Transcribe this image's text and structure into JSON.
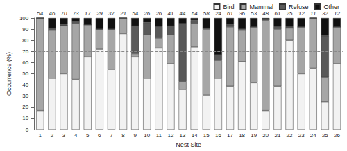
{
  "chart_data": {
    "type": "bar",
    "stacked": true,
    "x_label": "Nest Site",
    "y_label": "Occurrence (%)",
    "categories": [
      "1",
      "2",
      "3",
      "4",
      "5",
      "6",
      "7",
      "8",
      "9",
      "10",
      "11",
      "12",
      "13",
      "14",
      "15",
      "16",
      "17",
      "18",
      "19",
      "20",
      "21",
      "22",
      "23",
      "24",
      "25",
      "26"
    ],
    "sample_sizes": [
      54,
      46,
      70,
      73,
      17,
      29,
      37,
      21,
      54,
      26,
      26,
      41,
      44,
      64,
      58,
      24,
      61,
      36,
      53,
      48,
      61,
      25,
      12,
      11,
      32,
      12
    ],
    "series": [
      {
        "name": "Bird",
        "color": "#f2f2f2",
        "values": [
          17,
          46,
          50,
          45,
          65,
          72,
          54,
          86,
          65,
          46,
          73,
          59,
          36,
          74,
          31,
          46,
          39,
          61,
          42,
          17,
          39,
          80,
          50,
          55,
          25,
          59
        ]
      },
      {
        "name": "Mammal",
        "color": "#a6a6a6",
        "values": [
          83,
          43,
          43,
          50,
          29,
          18,
          36,
          14,
          3,
          39,
          9,
          26,
          7,
          21,
          59,
          16,
          53,
          28,
          50,
          81,
          51,
          11,
          42,
          45,
          22,
          33
        ]
      },
      {
        "name": "Refuse",
        "color": "#595959",
        "values": [
          0,
          2,
          1,
          2,
          0,
          0,
          0,
          0,
          25,
          11,
          10,
          8,
          52,
          3,
          1,
          5,
          2,
          1,
          0,
          1,
          2,
          1,
          0,
          0,
          37,
          0
        ]
      },
      {
        "name": "Other",
        "color": "#111111",
        "values": [
          0,
          9,
          6,
          3,
          6,
          10,
          10,
          0,
          7,
          4,
          8,
          7,
          5,
          2,
          9,
          33,
          6,
          10,
          8,
          1,
          8,
          8,
          8,
          0,
          16,
          8
        ]
      }
    ],
    "reference_line": 70,
    "ylim": [
      0,
      100
    ],
    "yticks": [
      0,
      10,
      20,
      30,
      40,
      50,
      60,
      70,
      80,
      90,
      100
    ],
    "grid": false,
    "legend": "top-right"
  }
}
